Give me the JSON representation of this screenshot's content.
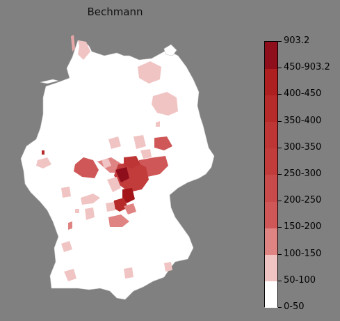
{
  "title": "Bechmann",
  "colorbar": {
    "labels": [
      "0-50",
      "50-100",
      "100-150",
      "150-200",
      "200-250",
      "250-300",
      "300-350",
      "350-400",
      "400-450",
      "450-903.2",
      "903.2"
    ],
    "colors": [
      "#ffffff",
      "#f1c4c4",
      "#df8383",
      "#cf5757",
      "#c84a4a",
      "#c23c3c",
      "#bd3535",
      "#b62a2a",
      "#ae2020",
      "#a31519",
      "#8f0e1c"
    ]
  },
  "map": {
    "land_color": "#ffffff",
    "border_color": "#c8c8c8"
  }
}
